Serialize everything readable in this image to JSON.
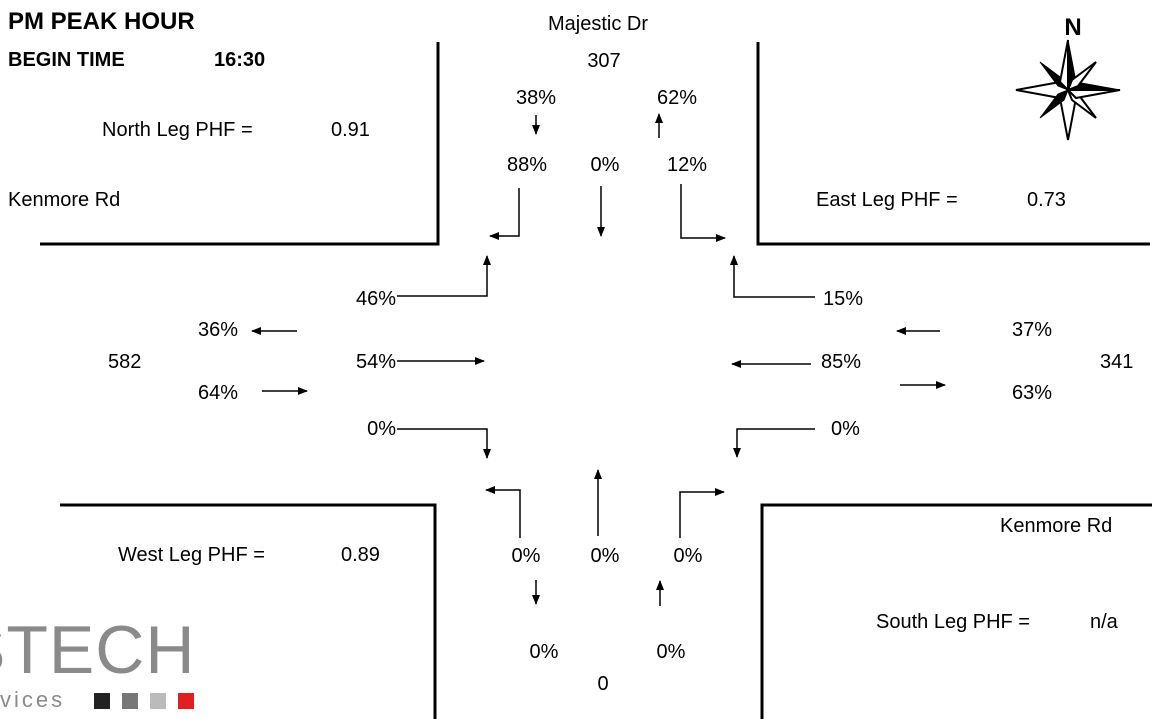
{
  "header": {
    "title": "PM PEAK HOUR",
    "begin_time_label": "BEGIN TIME",
    "begin_time_value": "16:30"
  },
  "streets": {
    "north": "Majestic Dr",
    "west": "Kenmore Rd",
    "east": "Kenmore Rd"
  },
  "compass": {
    "label": "N",
    "icon": "compass-rose-icon"
  },
  "north_leg": {
    "phf_label": "North Leg PHF =",
    "phf_value": "0.91",
    "total": "307",
    "out_pct": "38%",
    "in_pct": "62%",
    "right_pct": "88%",
    "thru_pct": "0%",
    "left_pct": "12%"
  },
  "east_leg": {
    "phf_label": "East Leg PHF =",
    "phf_value": "0.73",
    "total": "341",
    "in_pct": "37%",
    "out_pct": "63%",
    "right_pct": "15%",
    "thru_pct": "85%",
    "left_pct": "0%"
  },
  "west_leg": {
    "phf_label": "West Leg PHF =",
    "phf_value": "0.89",
    "total": "582",
    "out_pct": "36%",
    "in_pct": "64%",
    "left_pct": "46%",
    "thru_pct": "54%",
    "right_pct": "0%"
  },
  "south_leg": {
    "phf_label": "South Leg PHF =",
    "phf_value": "n/a",
    "total": "0",
    "out_pct": "0%",
    "in_pct": "0%",
    "left_pct": "0%",
    "thru_pct": "0%",
    "right_pct": "0%"
  },
  "logo": {
    "word": "STECH",
    "sub": "vices",
    "colors": [
      "#222222",
      "#777777",
      "#bbbbbb",
      "#e02020"
    ]
  }
}
